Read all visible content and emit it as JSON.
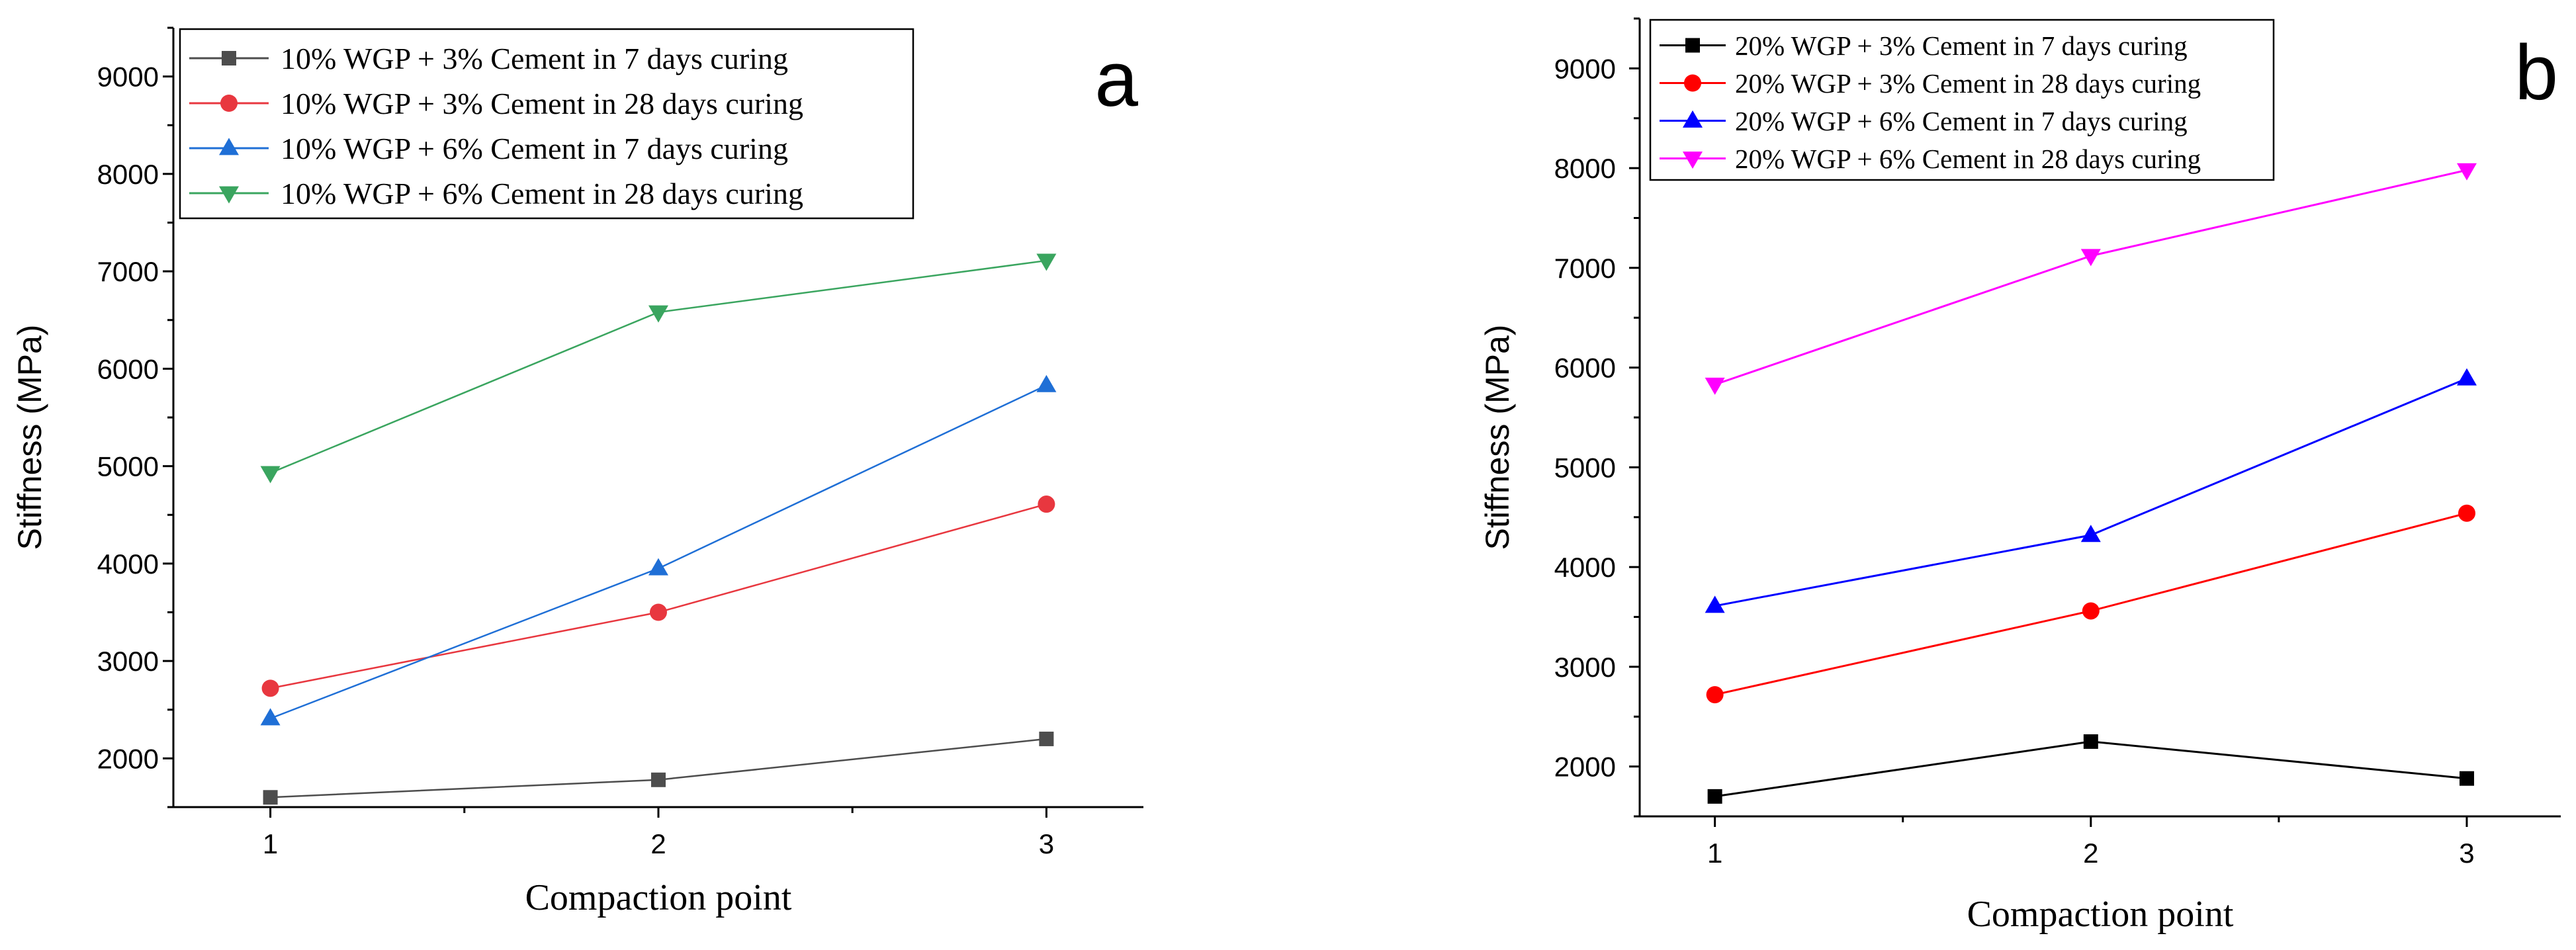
{
  "charts": [
    {
      "panel_label": "a",
      "type": "line",
      "xlabel": "Compaction point",
      "ylabel": "Stiffness (MPa)",
      "xlim": [
        0.75,
        3.25
      ],
      "ylim": [
        1500,
        9500
      ],
      "x_ticks": [
        "1",
        "2",
        "3"
      ],
      "y_ticks": [
        "2000",
        "3000",
        "4000",
        "5000",
        "6000",
        "7000",
        "8000",
        "9000"
      ],
      "legend_position": "top-left",
      "series": [
        {
          "name": "10% WGP + 3% Cement in 7 days curing",
          "marker": "square",
          "color": "#4d4d4d",
          "x": [
            1,
            2,
            3
          ],
          "values": [
            1600,
            1780,
            2200
          ]
        },
        {
          "name": "10% WGP + 3% Cement in 28 days curing",
          "marker": "circle",
          "color": "#e8373f",
          "x": [
            1,
            2,
            3
          ],
          "values": [
            2720,
            3500,
            4610
          ]
        },
        {
          "name": "10% WGP + 6% Cement in 7 days curing",
          "marker": "triangle-up",
          "color": "#1f6fd6",
          "x": [
            1,
            2,
            3
          ],
          "values": [
            2410,
            3950,
            5830
          ]
        },
        {
          "name": "10% WGP + 6% Cement in 28 days curing",
          "marker": "triangle-down",
          "color": "#3aa55f",
          "x": [
            1,
            2,
            3
          ],
          "values": [
            4930,
            6580,
            7110
          ]
        }
      ]
    },
    {
      "panel_label": "b",
      "type": "line",
      "xlabel": "Compaction point",
      "ylabel": "Stiffness (MPa)",
      "xlim": [
        0.8,
        3.25
      ],
      "ylim": [
        1500,
        9500
      ],
      "x_ticks": [
        "1",
        "2",
        "3"
      ],
      "y_ticks": [
        "2000",
        "3000",
        "4000",
        "5000",
        "6000",
        "7000",
        "8000",
        "9000"
      ],
      "legend_position": "top-left",
      "series": [
        {
          "name": "20% WGP + 3% Cement in 7 days curing",
          "marker": "square",
          "color": "#000000",
          "x": [
            1,
            2,
            3
          ],
          "values": [
            1700,
            2250,
            1880
          ]
        },
        {
          "name": "20% WGP + 3% Cement in 28 days curing",
          "marker": "circle",
          "color": "#ff0000",
          "x": [
            1,
            2,
            3
          ],
          "values": [
            2720,
            3560,
            4540
          ]
        },
        {
          "name": "20% WGP + 6% Cement in 7 days curing",
          "marker": "triangle-up",
          "color": "#0000ff",
          "x": [
            1,
            2,
            3
          ],
          "values": [
            3610,
            4320,
            5890
          ]
        },
        {
          "name": "20% WGP + 6% Cement in 28 days curing",
          "marker": "triangle-down",
          "color": "#ff00ff",
          "x": [
            1,
            2,
            3
          ],
          "values": [
            5830,
            7120,
            7980
          ]
        }
      ]
    }
  ]
}
